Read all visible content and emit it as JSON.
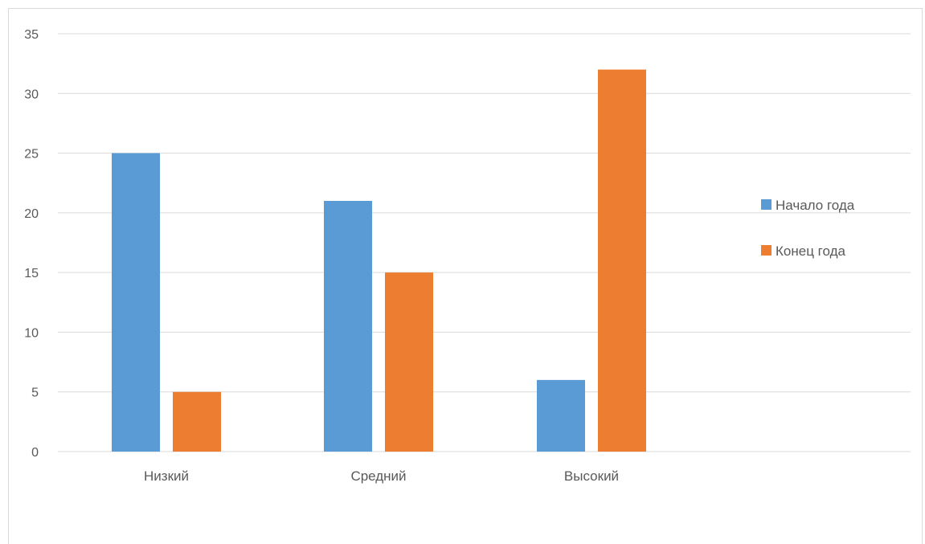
{
  "chart_data": {
    "type": "bar",
    "title": "",
    "xlabel": "",
    "ylabel": "",
    "categories": [
      "Низкий",
      "Средний",
      "Высокий"
    ],
    "series": [
      {
        "name": "Начало года",
        "color": "#5b9bd5",
        "values": [
          25,
          21,
          6
        ]
      },
      {
        "name": "Конец года",
        "color": "#ed7d31",
        "values": [
          5,
          15,
          32
        ]
      }
    ],
    "ylim": [
      0,
      35
    ],
    "yticks": [
      0,
      5,
      10,
      15,
      20,
      25,
      30,
      35
    ],
    "grid": true,
    "legend_position": "right"
  }
}
